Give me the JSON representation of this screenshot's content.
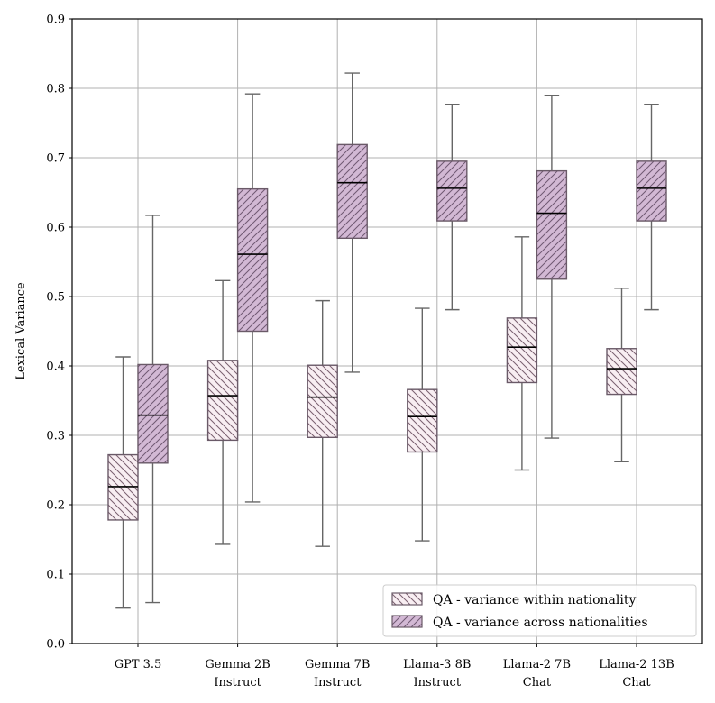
{
  "chart_data": {
    "type": "boxplot",
    "title": "",
    "xlabel": "",
    "ylabel": "Lexical Variance",
    "ylim": [
      0.0,
      0.9
    ],
    "yticks": [
      "0.0",
      "0.1",
      "0.2",
      "0.3",
      "0.4",
      "0.5",
      "0.6",
      "0.7",
      "0.8",
      "0.9"
    ],
    "grid": true,
    "legend_position": "bottom-right",
    "categories": [
      [
        "GPT 3.5"
      ],
      [
        "Gemma 2B",
        "Instruct"
      ],
      [
        "Gemma 7B",
        "Instruct"
      ],
      [
        "Llama-3 8B",
        "Instruct"
      ],
      [
        "Llama-2 7B",
        "Chat"
      ],
      [
        "Llama-2 13B",
        "Chat"
      ]
    ],
    "series": [
      {
        "name": "QA - variance within nationality",
        "color": "#f8eef2",
        "hatch": "backslash",
        "boxes": [
          {
            "whislo": 0.051,
            "q1": 0.178,
            "med": 0.226,
            "q3": 0.272,
            "whishi": 0.413
          },
          {
            "whislo": 0.143,
            "q1": 0.293,
            "med": 0.357,
            "q3": 0.408,
            "whishi": 0.523
          },
          {
            "whislo": 0.14,
            "q1": 0.297,
            "med": 0.355,
            "q3": 0.401,
            "whishi": 0.494
          },
          {
            "whislo": 0.148,
            "q1": 0.276,
            "med": 0.327,
            "q3": 0.366,
            "whishi": 0.483
          },
          {
            "whislo": 0.25,
            "q1": 0.376,
            "med": 0.427,
            "q3": 0.469,
            "whishi": 0.586
          },
          {
            "whislo": 0.262,
            "q1": 0.359,
            "med": 0.396,
            "q3": 0.425,
            "whishi": 0.512
          }
        ]
      },
      {
        "name": "QA - variance across nationalities",
        "color": "#d2b8d4",
        "hatch": "forwardslash",
        "boxes": [
          {
            "whislo": 0.059,
            "q1": 0.26,
            "med": 0.329,
            "q3": 0.402,
            "whishi": 0.617
          },
          {
            "whislo": 0.204,
            "q1": 0.45,
            "med": 0.561,
            "q3": 0.655,
            "whishi": 0.792
          },
          {
            "whislo": 0.391,
            "q1": 0.584,
            "med": 0.664,
            "q3": 0.719,
            "whishi": 0.822
          },
          {
            "whislo": 0.481,
            "q1": 0.609,
            "med": 0.656,
            "q3": 0.695,
            "whishi": 0.777
          },
          {
            "whislo": 0.296,
            "q1": 0.525,
            "med": 0.62,
            "q3": 0.681,
            "whishi": 0.79
          },
          {
            "whislo": 0.481,
            "q1": 0.609,
            "med": 0.656,
            "q3": 0.695,
            "whishi": 0.777
          }
        ]
      }
    ]
  }
}
